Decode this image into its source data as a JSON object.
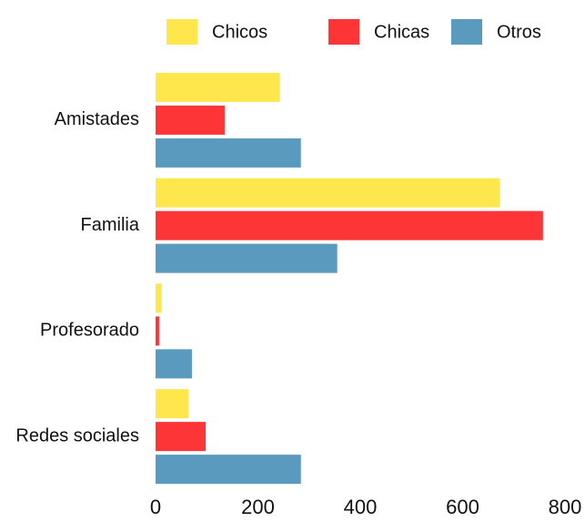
{
  "chart_data": {
    "type": "hbar",
    "categories": [
      "Amistades",
      "Familia",
      "Profesorado",
      "Redes sociales"
    ],
    "series": [
      {
        "name": "Chicos",
        "color": "#fde74c",
        "values": [
          243,
          673,
          12,
          64
        ]
      },
      {
        "name": "Chicas",
        "color": "#fe3536",
        "values": [
          135,
          757,
          7,
          98
        ]
      },
      {
        "name": "Otros",
        "color": "#5b9abf",
        "values": [
          284,
          355,
          71,
          284
        ]
      }
    ],
    "xlim": [
      0,
      800
    ],
    "xticks": [
      0,
      200,
      400,
      600,
      800
    ],
    "legend": "top",
    "grid": false
  }
}
